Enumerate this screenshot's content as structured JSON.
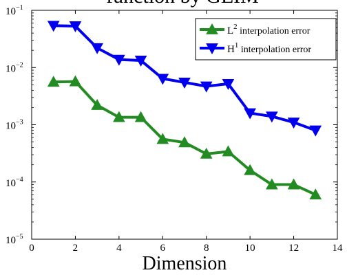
{
  "chart_data": {
    "type": "line",
    "title": "function by GEIM",
    "xlabel": "Dimension",
    "ylabel": "",
    "x": [
      1,
      2,
      3,
      4,
      5,
      6,
      7,
      8,
      9,
      10,
      11,
      12,
      13
    ],
    "xlim": [
      0,
      14
    ],
    "ylim": [
      1e-05,
      0.1
    ],
    "yscale": "log",
    "xticks": [
      "0",
      "2",
      "4",
      "6",
      "8",
      "10",
      "12",
      "14"
    ],
    "yticks": [
      {
        "base": "10",
        "exp": "−5"
      },
      {
        "base": "10",
        "exp": "−4"
      },
      {
        "base": "10",
        "exp": "−3"
      },
      {
        "base": "10",
        "exp": "−2"
      },
      {
        "base": "10",
        "exp": "−1"
      }
    ],
    "grid": false,
    "legend_position": "top-right",
    "series": [
      {
        "name_base": "L",
        "name_sup": "2",
        "name_rest": " interpolation error",
        "color": "#228b22",
        "marker": "triangle-up",
        "values": [
          0.0056,
          0.0057,
          0.0022,
          0.00135,
          0.00135,
          0.00056,
          0.00049,
          0.00031,
          0.00034,
          0.00016,
          9e-05,
          9e-05,
          6e-05
        ]
      },
      {
        "name_base": "H",
        "name_sup": "1",
        "name_rest": " interpolation error",
        "color": "#0000ee",
        "marker": "triangle-down",
        "values": [
          0.054,
          0.053,
          0.022,
          0.0138,
          0.0133,
          0.0064,
          0.0055,
          0.0047,
          0.0052,
          0.0016,
          0.0014,
          0.0011,
          0.0008
        ]
      }
    ]
  }
}
